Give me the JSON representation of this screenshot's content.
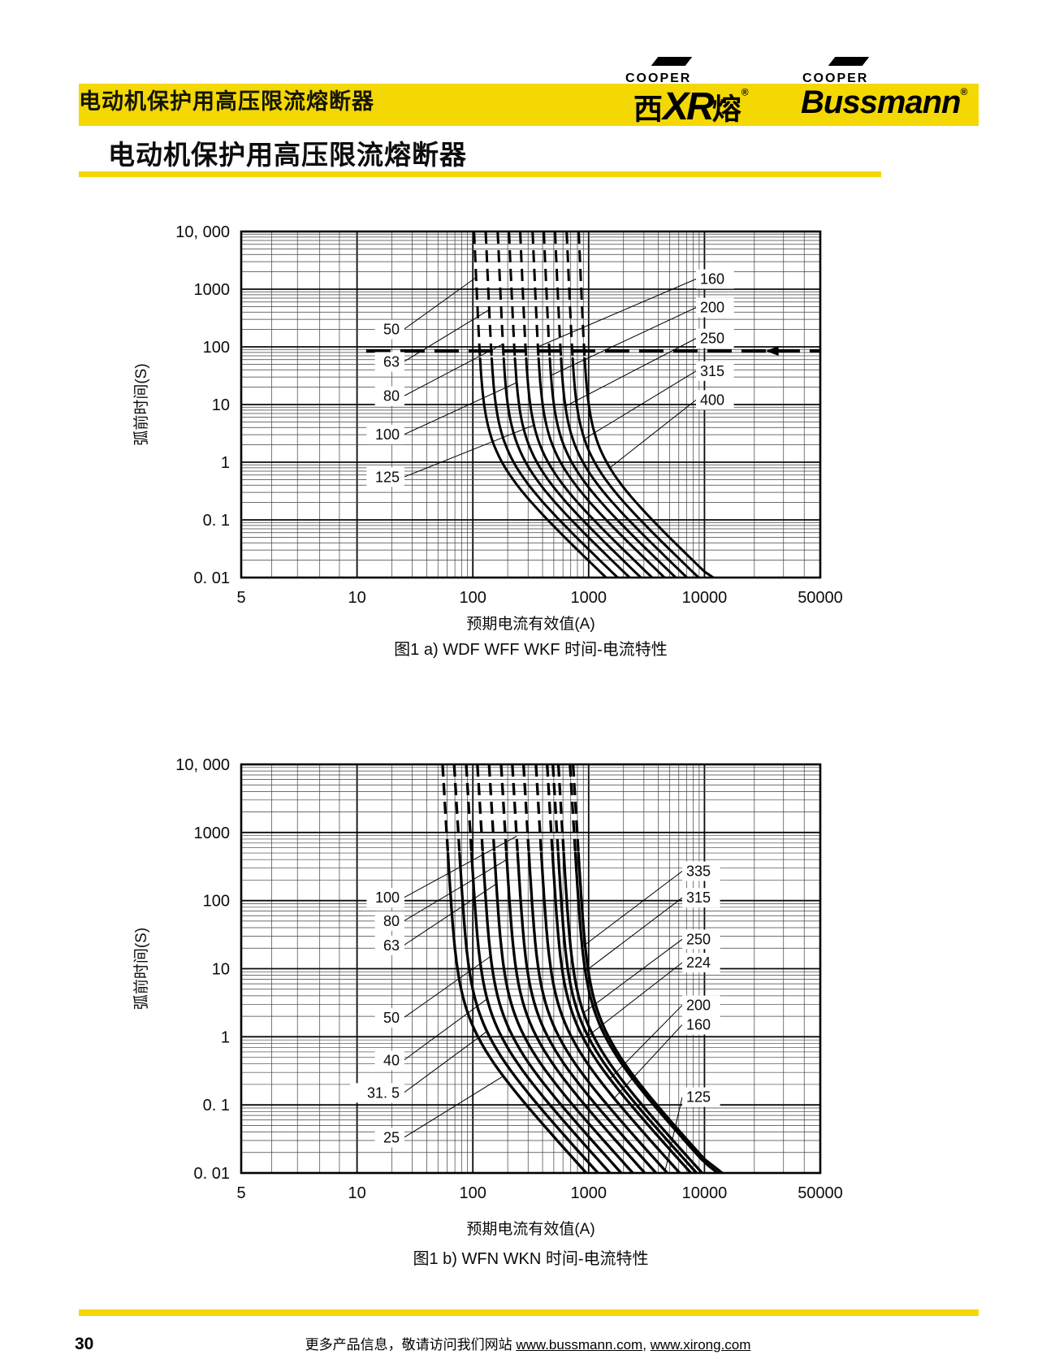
{
  "header": {
    "band_title": "电动机保护用高压限流熔断器",
    "logo_xirong": {
      "cooper": "COOPER",
      "char_left": "西",
      "xr": "XR",
      "char_right": "熔",
      "reg": "®"
    },
    "logo_bussmann": {
      "cooper": "COOPER",
      "name": "Bussmann",
      "reg": "®"
    }
  },
  "page_title": "电动机保护用高压限流熔断器",
  "footer": {
    "page_number": "30",
    "prefix": "更多产品信息，敬请访问我们网站 ",
    "link1": "www.bussmann.com",
    "separator": ", ",
    "link2": "www.xirong.com"
  },
  "chart_data": [
    {
      "type": "line",
      "caption": "图1 a) WDF WFF WKF 时间-电流特性",
      "xlabel": "预期电流有效值(A)",
      "ylabel": "弧前时间(S)",
      "x_scale": "log",
      "y_scale": "log",
      "xlim": [
        5,
        50000
      ],
      "ylim": [
        0.01,
        10000
      ],
      "x_tick_labels": [
        "5",
        "10",
        "100",
        "1000",
        "10000",
        "50000"
      ],
      "y_tick_labels": [
        "10, 000",
        "1000",
        "100",
        "10",
        "1",
        "0. 1",
        "0. 01"
      ],
      "grid": true,
      "reference_line": {
        "t_s": 85,
        "from_A": 12,
        "to_A": 50000,
        "arrow_at_A": 28000,
        "style": "long-dash with left arrow"
      },
      "curve_model": {
        "a": 4.2,
        "b": 4.3,
        "tilt": 0.022,
        "dashed_above_s": 60
      },
      "series": [
        {
          "name": "50",
          "rating_A": 50,
          "label_side": "left",
          "points_tI": [
            [
              10000,
              103
            ],
            [
              100,
              114
            ],
            [
              1,
              179
            ],
            [
              0.01,
              1410
            ]
          ]
        },
        {
          "name": "63",
          "rating_A": 63,
          "label_side": "left",
          "points_tI": [
            [
              10000,
              129
            ],
            [
              100,
              144
            ],
            [
              1,
              225
            ],
            [
              0.01,
              1780
            ]
          ]
        },
        {
          "name": "80",
          "rating_A": 80,
          "label_side": "left",
          "points_tI": [
            [
              10000,
              164
            ],
            [
              100,
              182
            ],
            [
              1,
              286
            ],
            [
              0.01,
              2260
            ]
          ]
        },
        {
          "name": "100",
          "rating_A": 100,
          "label_side": "left",
          "points_tI": [
            [
              10000,
              205
            ],
            [
              100,
              228
            ],
            [
              1,
              357
            ],
            [
              0.01,
              2820
            ]
          ]
        },
        {
          "name": "125",
          "rating_A": 125,
          "label_side": "left",
          "points_tI": [
            [
              10000,
              256
            ],
            [
              100,
              285
            ],
            [
              1,
              446
            ],
            [
              0.01,
              3530
            ]
          ]
        },
        {
          "name": "160",
          "rating_A": 160,
          "label_side": "right",
          "points_tI": [
            [
              10000,
              328
            ],
            [
              100,
              365
            ],
            [
              1,
              571
            ],
            [
              0.01,
              4520
            ]
          ]
        },
        {
          "name": "200",
          "rating_A": 200,
          "label_side": "right",
          "points_tI": [
            [
              10000,
              410
            ],
            [
              100,
              456
            ],
            [
              1,
              714
            ],
            [
              0.01,
              5650
            ]
          ]
        },
        {
          "name": "250",
          "rating_A": 250,
          "label_side": "right",
          "points_tI": [
            [
              10000,
              512
            ],
            [
              100,
              570
            ],
            [
              1,
              893
            ],
            [
              0.01,
              7060
            ]
          ]
        },
        {
          "name": "315",
          "rating_A": 315,
          "label_side": "right",
          "points_tI": [
            [
              10000,
              646
            ],
            [
              100,
              718
            ],
            [
              1,
              1125
            ],
            [
              0.01,
              8890
            ]
          ]
        },
        {
          "name": "400",
          "rating_A": 400,
          "label_side": "right",
          "points_tI": [
            [
              10000,
              820
            ],
            [
              100,
              912
            ],
            [
              1,
              1428
            ],
            [
              0.01,
              11290
            ]
          ]
        }
      ]
    },
    {
      "type": "line",
      "caption": "图1 b) WFN WKN 时间-电流特性",
      "xlabel": "预期电流有效值(A)",
      "ylabel": "弧前时间(S)",
      "x_scale": "log",
      "y_scale": "log",
      "xlim": [
        5,
        50000
      ],
      "ylim": [
        0.01,
        10000
      ],
      "x_tick_labels": [
        "5",
        "10",
        "100",
        "1000",
        "10000",
        "50000"
      ],
      "y_tick_labels": [
        "10, 000",
        "1000",
        "100",
        "10",
        "1",
        "0. 1",
        "0. 01"
      ],
      "grid": true,
      "curve_model": {
        "a": 4.8,
        "b": 5.5,
        "tilt": 0.035,
        "dashed_above_s": 500
      },
      "series": [
        {
          "name": "25",
          "rating_A": 25,
          "label_side": "left",
          "points_tI": [
            [
              10000,
              55
            ],
            [
              100,
              65
            ],
            [
              1,
              111
            ],
            [
              0.01,
              955
            ]
          ]
        },
        {
          "name": "31.5",
          "rating_A": 31.5,
          "label_side": "left",
          "points_tI": [
            [
              10000,
              69
            ],
            [
              100,
              82
            ],
            [
              1,
              140
            ],
            [
              0.01,
              1200
            ]
          ]
        },
        {
          "name": "40",
          "rating_A": 40,
          "label_side": "left",
          "points_tI": [
            [
              10000,
              88
            ],
            [
              100,
              104
            ],
            [
              1,
              177
            ],
            [
              0.01,
              1530
            ]
          ]
        },
        {
          "name": "50",
          "rating_A": 50,
          "label_side": "left",
          "points_tI": [
            [
              10000,
              110
            ],
            [
              100,
              130
            ],
            [
              1,
              222
            ],
            [
              0.01,
              1910
            ]
          ]
        },
        {
          "name": "63",
          "rating_A": 63,
          "label_side": "left",
          "points_tI": [
            [
              10000,
              138
            ],
            [
              100,
              163
            ],
            [
              1,
              279
            ],
            [
              0.01,
              2410
            ]
          ]
        },
        {
          "name": "80",
          "rating_A": 80,
          "label_side": "left",
          "points_tI": [
            [
              10000,
              175
            ],
            [
              100,
              207
            ],
            [
              1,
              354
            ],
            [
              0.01,
              3060
            ]
          ]
        },
        {
          "name": "100",
          "rating_A": 100,
          "label_side": "left",
          "points_tI": [
            [
              10000,
              219
            ],
            [
              100,
              259
            ],
            [
              1,
              443
            ],
            [
              0.01,
              3820
            ]
          ]
        },
        {
          "name": "125",
          "rating_A": 125,
          "label_side": "right",
          "points_tI": [
            [
              10000,
              274
            ],
            [
              100,
              324
            ],
            [
              1,
              554
            ],
            [
              0.01,
              4780
            ]
          ]
        },
        {
          "name": "160",
          "rating_A": 160,
          "label_side": "right",
          "points_tI": [
            [
              10000,
              350
            ],
            [
              100,
              414
            ],
            [
              1,
              709
            ],
            [
              0.01,
              6110
            ]
          ]
        },
        {
          "name": "200",
          "rating_A": 200,
          "label_side": "right",
          "points_tI": [
            [
              10000,
              438
            ],
            [
              100,
              518
            ],
            [
              1,
              886
            ],
            [
              0.01,
              7640
            ]
          ]
        },
        {
          "name": "224",
          "rating_A": 224,
          "label_side": "right",
          "points_tI": [
            [
              10000,
              491
            ],
            [
              100,
              580
            ],
            [
              1,
              992
            ],
            [
              0.01,
              8560
            ]
          ]
        },
        {
          "name": "250",
          "rating_A": 250,
          "label_side": "right",
          "points_tI": [
            [
              10000,
              548
            ],
            [
              100,
              648
            ],
            [
              1,
              1108
            ],
            [
              0.01,
              9550
            ]
          ]
        },
        {
          "name": "315",
          "rating_A": 315,
          "label_side": "right",
          "points_tI": [
            [
              10000,
              690
            ],
            [
              100,
              816
            ],
            [
              1,
              1395
            ],
            [
              0.01,
              12000
            ]
          ]
        },
        {
          "name": "335",
          "rating_A": 335,
          "label_side": "right",
          "points_tI": [
            [
              10000,
              734
            ],
            [
              100,
              868
            ],
            [
              1,
              1484
            ],
            [
              0.01,
              12800
            ]
          ]
        }
      ]
    }
  ]
}
